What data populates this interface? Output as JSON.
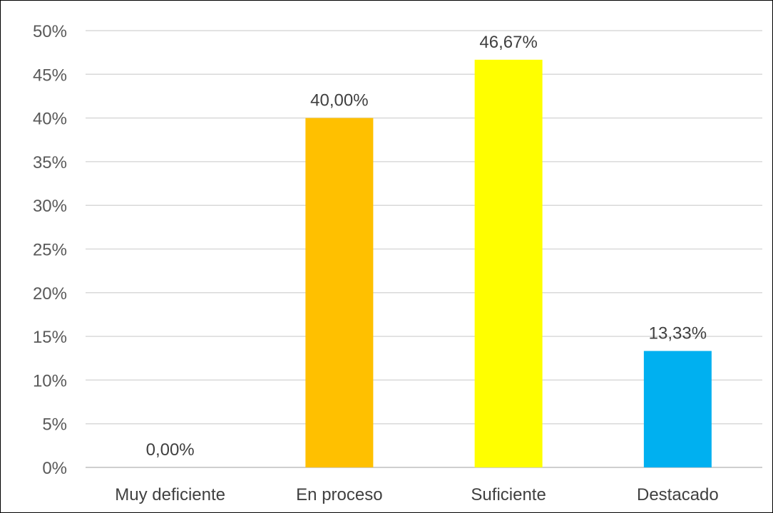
{
  "chart_data": {
    "type": "bar",
    "title": "",
    "xlabel": "",
    "ylabel": "",
    "categories": [
      "Muy deficiente",
      "En proceso",
      "Suficiente",
      "Destacado"
    ],
    "values": [
      0.0,
      40.0,
      46.67,
      13.33
    ],
    "data_labels": [
      "0,00%",
      "40,00%",
      "46,67%",
      "13,33%"
    ],
    "colors": [
      "#4472C4",
      "#FFC000",
      "#FFFF00",
      "#00B0F0"
    ],
    "ylim": [
      0,
      50
    ],
    "yticks": [
      "0%",
      "5%",
      "10%",
      "15%",
      "20%",
      "25%",
      "30%",
      "35%",
      "40%",
      "45%",
      "50%"
    ],
    "grid": true,
    "legend": "none"
  }
}
